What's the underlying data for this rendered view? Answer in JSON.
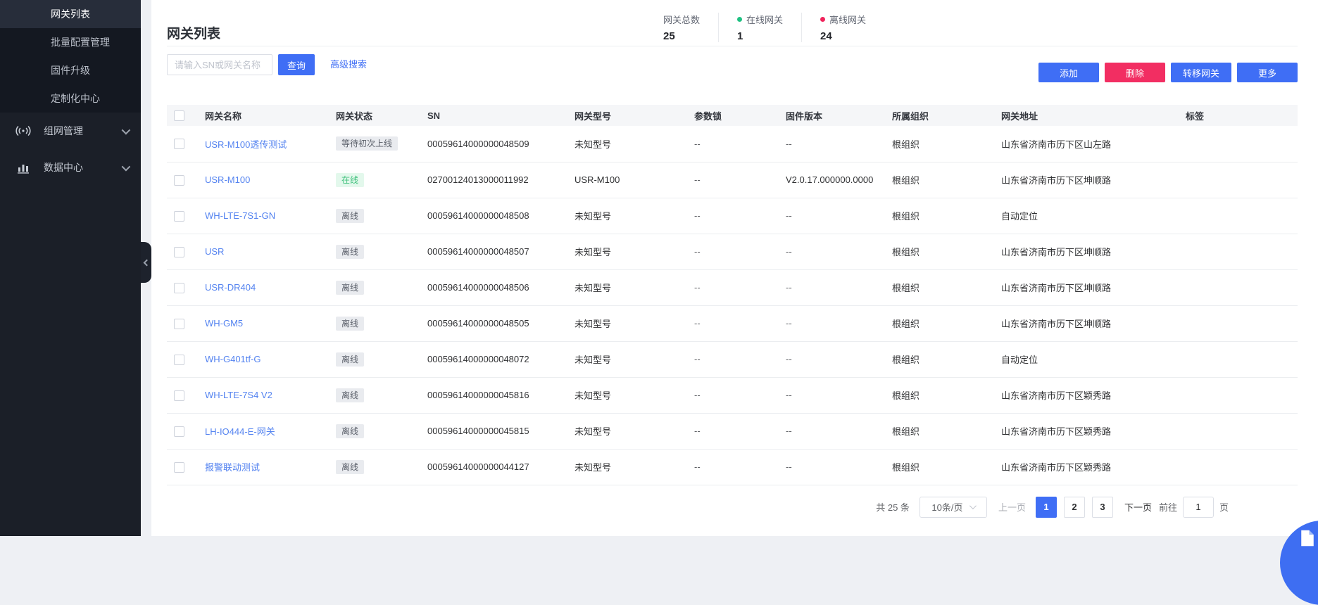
{
  "sidebar": {
    "items": [
      {
        "label": "网关列表",
        "active": true
      },
      {
        "label": "批量配置管理",
        "active": false
      },
      {
        "label": "固件升级",
        "active": false
      },
      {
        "label": "定制化中心",
        "active": false
      }
    ],
    "groups": [
      {
        "label": "组网管理",
        "icon": "signal-icon"
      },
      {
        "label": "数据中心",
        "icon": "bar-chart-icon"
      }
    ]
  },
  "header": {
    "title": "网关列表",
    "stats": [
      {
        "label": "网关总数",
        "value": "25",
        "dot": null
      },
      {
        "label": "在线网关",
        "value": "1",
        "dot": "#1fc182"
      },
      {
        "label": "离线网关",
        "value": "24",
        "dot": "#f0245c"
      }
    ]
  },
  "toolbar": {
    "search_placeholder": "请输入SN或网关名称",
    "query_button": "查询",
    "advanced_search": "高级搜索",
    "add_button": "添加",
    "delete_button": "删除",
    "transfer_button": "转移网关",
    "more_button": "更多"
  },
  "table": {
    "columns": [
      "网关名称",
      "网关状态",
      "SN",
      "网关型号",
      "参数锁",
      "固件版本",
      "所属组织",
      "网关地址",
      "标签"
    ],
    "rows": [
      {
        "name": "USR-M100透传测试",
        "status": "等待初次上线",
        "status_type": "gray",
        "sn": "00059614000000048509",
        "model": "未知型号",
        "param_lock": "--",
        "firmware": "--",
        "org": "根组织",
        "address": "山东省济南市历下区山左路",
        "tag": ""
      },
      {
        "name": "USR-M100",
        "status": "在线",
        "status_type": "green",
        "sn": "02700124013000011992",
        "model": "USR-M100",
        "param_lock": "--",
        "firmware": "V2.0.17.000000.0000",
        "org": "根组织",
        "address": "山东省济南市历下区坤顺路",
        "tag": ""
      },
      {
        "name": "WH-LTE-7S1-GN",
        "status": "离线",
        "status_type": "gray",
        "sn": "00059614000000048508",
        "model": "未知型号",
        "param_lock": "--",
        "firmware": "--",
        "org": "根组织",
        "address": "自动定位",
        "tag": ""
      },
      {
        "name": "USR",
        "status": "离线",
        "status_type": "gray",
        "sn": "00059614000000048507",
        "model": "未知型号",
        "param_lock": "--",
        "firmware": "--",
        "org": "根组织",
        "address": "山东省济南市历下区坤顺路",
        "tag": ""
      },
      {
        "name": "USR-DR404",
        "status": "离线",
        "status_type": "gray",
        "sn": "00059614000000048506",
        "model": "未知型号",
        "param_lock": "--",
        "firmware": "--",
        "org": "根组织",
        "address": "山东省济南市历下区坤顺路",
        "tag": ""
      },
      {
        "name": "WH-GM5",
        "status": "离线",
        "status_type": "gray",
        "sn": "00059614000000048505",
        "model": "未知型号",
        "param_lock": "--",
        "firmware": "--",
        "org": "根组织",
        "address": "山东省济南市历下区坤顺路",
        "tag": ""
      },
      {
        "name": "WH-G401tf-G",
        "status": "离线",
        "status_type": "gray",
        "sn": "00059614000000048072",
        "model": "未知型号",
        "param_lock": "--",
        "firmware": "--",
        "org": "根组织",
        "address": "自动定位",
        "tag": ""
      },
      {
        "name": "WH-LTE-7S4 V2",
        "status": "离线",
        "status_type": "gray",
        "sn": "00059614000000045816",
        "model": "未知型号",
        "param_lock": "--",
        "firmware": "--",
        "org": "根组织",
        "address": "山东省济南市历下区颖秀路",
        "tag": ""
      },
      {
        "name": "LH-IO444-E-网关",
        "status": "离线",
        "status_type": "gray",
        "sn": "00059614000000045815",
        "model": "未知型号",
        "param_lock": "--",
        "firmware": "--",
        "org": "根组织",
        "address": "山东省济南市历下区颖秀路",
        "tag": ""
      },
      {
        "name": "报警联动测试",
        "status": "离线",
        "status_type": "gray",
        "sn": "00059614000000044127",
        "model": "未知型号",
        "param_lock": "--",
        "firmware": "--",
        "org": "根组织",
        "address": "山东省济南市历下区颖秀路",
        "tag": ""
      }
    ]
  },
  "pagination": {
    "total": "共 25 条",
    "page_size": "10条/页",
    "prev": "上一页",
    "pages": [
      "1",
      "2",
      "3"
    ],
    "active_page": "1",
    "next": "下一页",
    "goto_label": "前往",
    "goto_value": "1",
    "page_unit": "页"
  },
  "colors": {
    "accent_blue": "#3f6ef5",
    "danger_red": "#f22e62",
    "online_green": "#1fc182",
    "offline_red": "#f0245c",
    "sidebar_bg": "#1b1f28",
    "sidebar_active_bg": "#272d3a",
    "link_blue": "#5483f0"
  }
}
